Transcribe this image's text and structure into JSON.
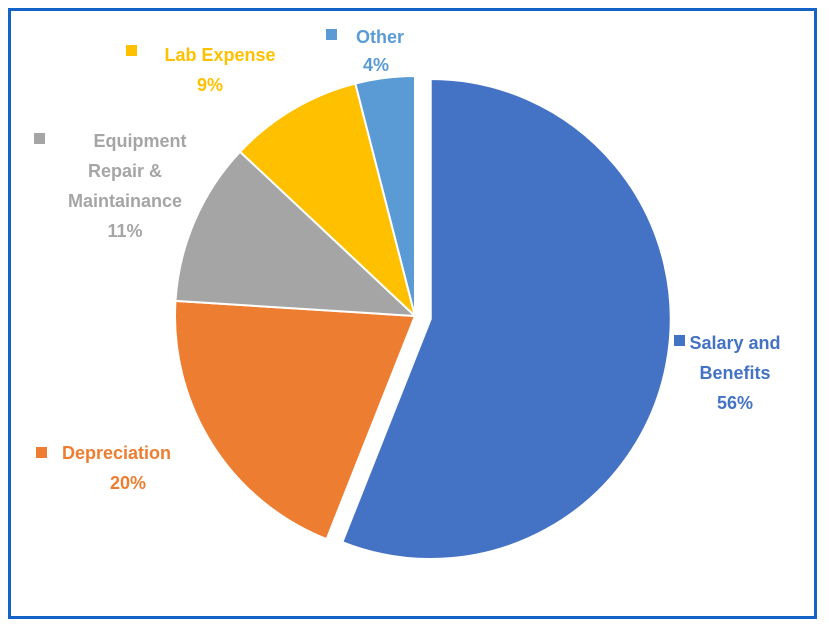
{
  "chart_data": {
    "type": "pie",
    "slices": [
      {
        "label_lines": [
          "Salary and",
          "Benefits"
        ],
        "value": 56,
        "pct": "56%",
        "color": "#4472c4",
        "key": "salary-benefits",
        "exploded": true
      },
      {
        "label_lines": [
          "Depreciation"
        ],
        "value": 20,
        "pct": "20%",
        "color": "#ed7d31",
        "key": "depreciation",
        "exploded": false
      },
      {
        "label_lines": [
          "Equipment",
          "Repair &",
          "Maintainance"
        ],
        "value": 11,
        "pct": "11%",
        "color": "#a5a5a5",
        "key": "equipment-repair",
        "exploded": false
      },
      {
        "label_lines": [
          "Lab Expense"
        ],
        "value": 9,
        "pct": "9%",
        "color": "#ffc000",
        "key": "lab-expense",
        "exploded": false
      },
      {
        "label_lines": [
          "Other"
        ],
        "value": 4,
        "pct": "4%",
        "color": "#5b9bd5",
        "key": "other",
        "exploded": false
      }
    ],
    "start_angle_deg": 0,
    "direction": "clockwise",
    "legend": "none",
    "data_labels": "category name and percentage"
  },
  "colors": {
    "frame_border": "#1464c8"
  }
}
